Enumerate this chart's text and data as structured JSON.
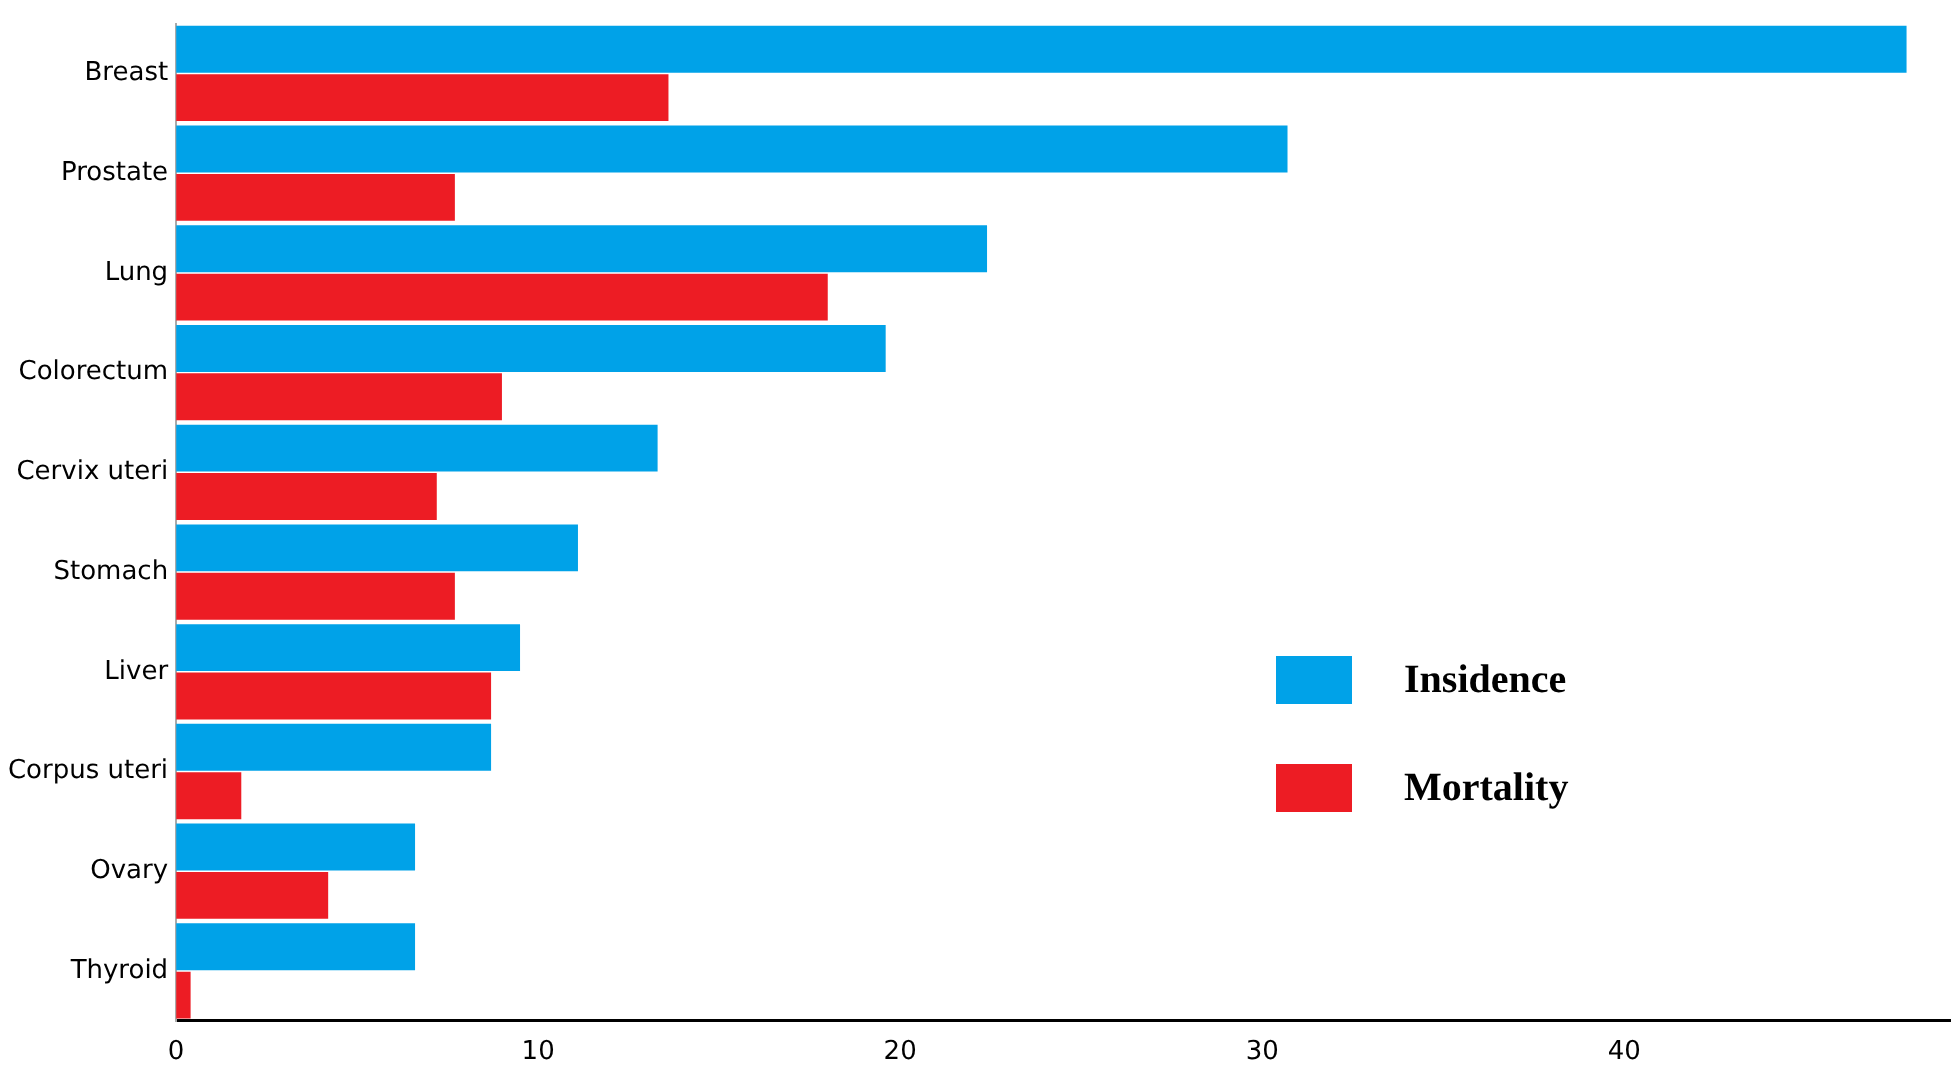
{
  "chart_data": {
    "type": "bar",
    "orientation": "horizontal",
    "categories": [
      "Breast",
      "Prostate",
      "Lung",
      "Colorectum",
      "Cervix uteri",
      "Stomach",
      "Liver",
      "Corpus uteri",
      "Ovary",
      "Thyroid"
    ],
    "series": [
      {
        "name": "Insidence",
        "color": "#00a2e8",
        "values": [
          47.8,
          30.7,
          22.4,
          19.6,
          13.3,
          11.1,
          9.5,
          8.7,
          6.6,
          6.6
        ]
      },
      {
        "name": "Mortality",
        "color": "#ed1c24",
        "values": [
          13.6,
          7.7,
          18.0,
          9.0,
          7.2,
          7.7,
          8.7,
          1.8,
          4.2,
          0.4
        ]
      }
    ],
    "xlim": [
      0,
      49
    ],
    "xticks": [
      0,
      10,
      20,
      30,
      40
    ],
    "grid": false,
    "legend": "right"
  }
}
